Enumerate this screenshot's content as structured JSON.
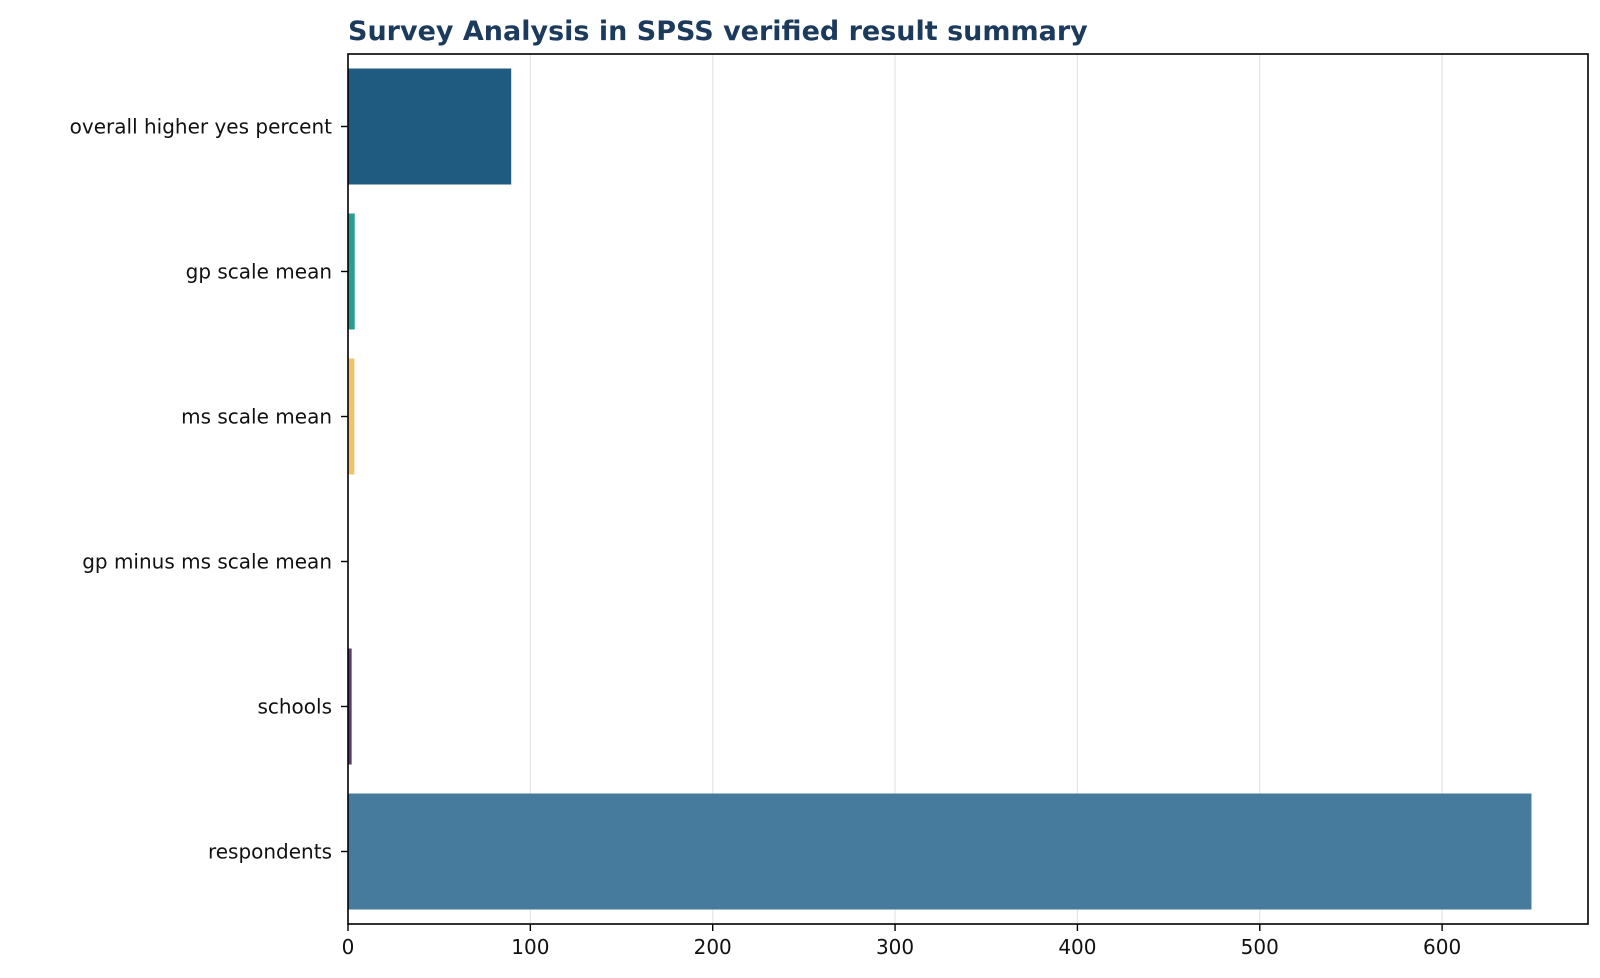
{
  "chart_data": {
    "type": "bar",
    "orientation": "horizontal",
    "title": "Survey Analysis in SPSS verified result summary",
    "xlabel": "",
    "ylabel": "",
    "xlim": [
      0,
      680
    ],
    "x_ticks": [
      0,
      100,
      200,
      300,
      400,
      500,
      600
    ],
    "grid": "vertical",
    "legend": "none",
    "categories": [
      "overall higher yes percent",
      "gp scale mean",
      "ms scale mean",
      "gp minus ms scale mean",
      "schools",
      "respondents"
    ],
    "values": [
      89.5,
      3.7,
      3.5,
      0.2,
      2,
      649
    ],
    "colors": [
      "#1f5a80",
      "#2a9d8f",
      "#f2c26b",
      "#e76f51",
      "#5a3d6e",
      "#467b9d"
    ]
  }
}
